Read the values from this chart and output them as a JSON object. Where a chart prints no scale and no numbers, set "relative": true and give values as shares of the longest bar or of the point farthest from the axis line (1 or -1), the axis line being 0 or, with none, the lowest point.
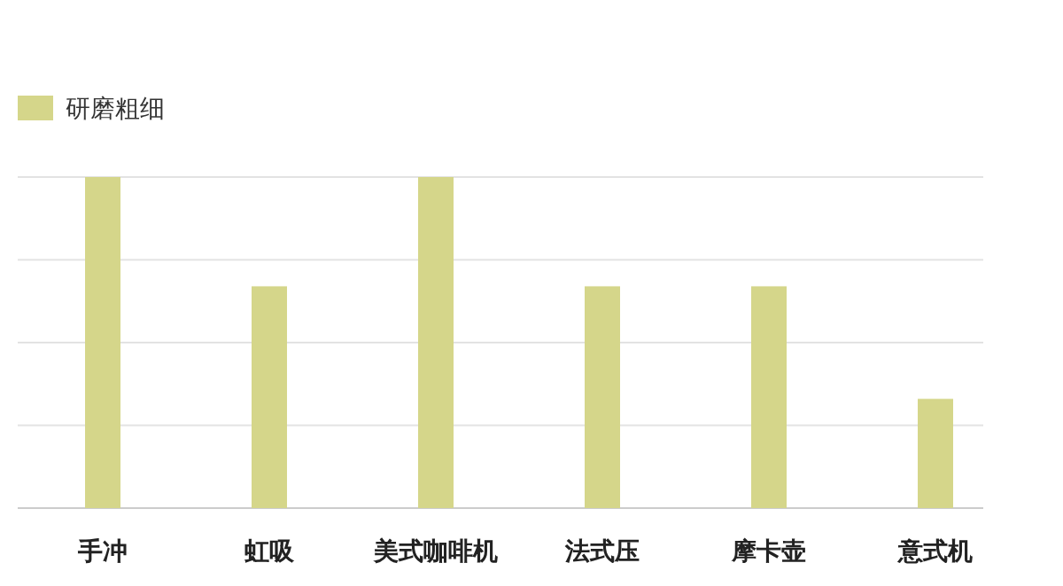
{
  "chart_data": {
    "type": "bar",
    "relative": true,
    "categories": [
      "手冲",
      "虹吸",
      "美式咖啡机",
      "法式压",
      "摩卡壶",
      "意式机"
    ],
    "series": [
      {
        "name": "研磨粗细",
        "color": "#d5d68a",
        "values": [
          1,
          0.67,
          1,
          0.67,
          0.67,
          0.33
        ]
      }
    ],
    "grid": "y",
    "legend": "top left"
  }
}
